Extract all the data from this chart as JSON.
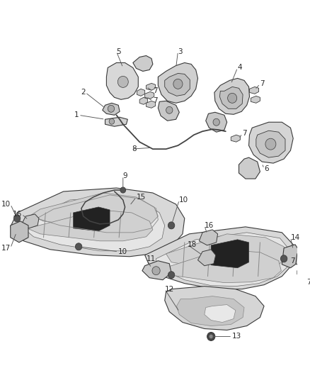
{
  "bg_color": "#ffffff",
  "fig_width": 4.38,
  "fig_height": 5.33,
  "dpi": 100,
  "line_color": "#3a3a3a",
  "label_color": "#2a2a2a",
  "label_fontsize": 7.5,
  "leader_color": "#555555",
  "part_edge": "#2a2a2a",
  "part_face": "#e8e8e8",
  "part_face_dark": "#c5c5c5",
  "part_face_mid": "#d5d5d5"
}
